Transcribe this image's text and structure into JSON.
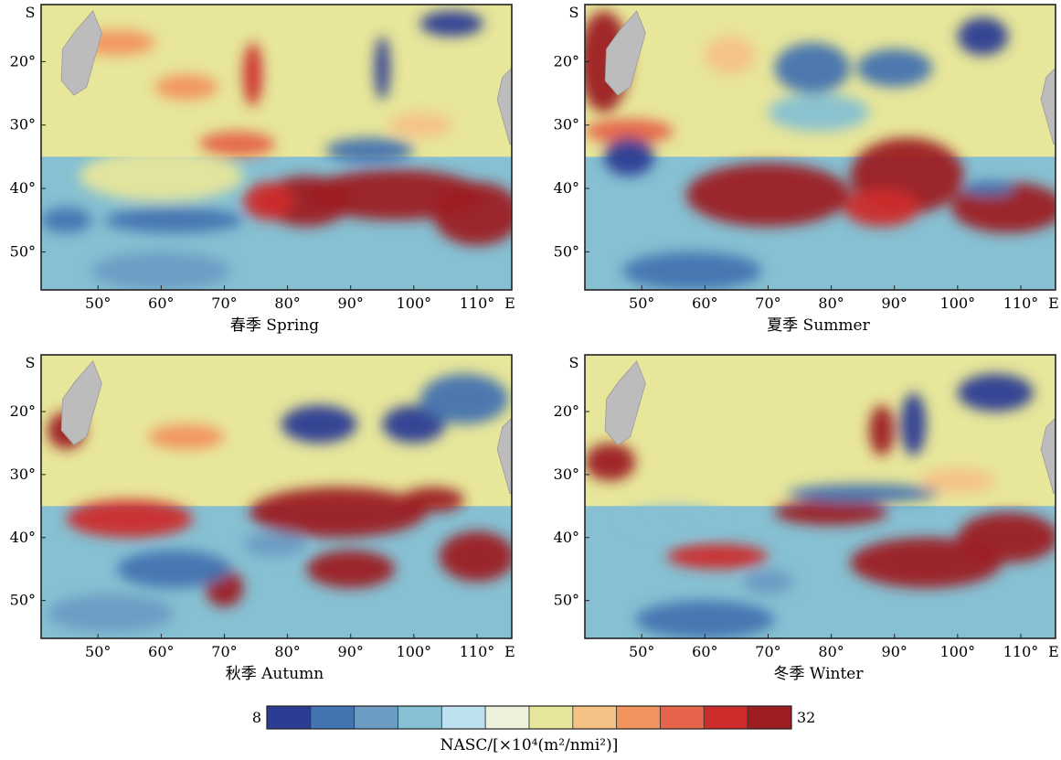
{
  "chart_data": {
    "type": "heatmap",
    "panels": [
      {
        "title": "春季 Spring",
        "blobs": [
          {
            "x": 97,
            "y": -41,
            "v": 32,
            "rx": 14,
            "ry": 4
          },
          {
            "x": 83,
            "y": -42,
            "v": 31,
            "rx": 7,
            "ry": 4
          },
          {
            "x": 110,
            "y": -44,
            "v": 31,
            "rx": 7,
            "ry": 5
          },
          {
            "x": 77,
            "y": -42,
            "v": 28,
            "rx": 4,
            "ry": 3
          },
          {
            "x": 74.5,
            "y": -22,
            "v": 29,
            "rx": 1.5,
            "ry": 5
          },
          {
            "x": 93,
            "y": -34,
            "v": 10,
            "rx": 7,
            "ry": 2
          },
          {
            "x": 95,
            "y": -21,
            "v": 9,
            "rx": 1.2,
            "ry": 5
          },
          {
            "x": 106,
            "y": -14,
            "v": 9,
            "rx": 5,
            "ry": 2
          },
          {
            "x": 62,
            "y": -45,
            "v": 10,
            "rx": 11,
            "ry": 2
          },
          {
            "x": 60,
            "y": -38,
            "v": 21,
            "rx": 13,
            "ry": 4
          },
          {
            "x": 53,
            "y": -17,
            "v": 24,
            "rx": 6,
            "ry": 2
          },
          {
            "x": 64,
            "y": -24,
            "v": 24,
            "rx": 5,
            "ry": 2
          },
          {
            "x": 60,
            "y": -53,
            "v": 12,
            "rx": 11,
            "ry": 3
          },
          {
            "x": 101,
            "y": -30,
            "v": 22,
            "rx": 5,
            "ry": 2
          },
          {
            "x": 72,
            "y": -33,
            "v": 26,
            "rx": 6,
            "ry": 2
          },
          {
            "x": 45,
            "y": -45,
            "v": 11,
            "rx": 4,
            "ry": 2
          }
        ]
      },
      {
        "title": "夏季 Summer",
        "blobs": [
          {
            "x": 44,
            "y": -20,
            "v": 32,
            "rx": 4,
            "ry": 8
          },
          {
            "x": 48,
            "y": -31,
            "v": 26,
            "rx": 7,
            "ry": 2
          },
          {
            "x": 70,
            "y": -41,
            "v": 31,
            "rx": 13,
            "ry": 5
          },
          {
            "x": 92,
            "y": -38,
            "v": 31,
            "rx": 9,
            "ry": 6
          },
          {
            "x": 108,
            "y": -43,
            "v": 32,
            "rx": 9,
            "ry": 4
          },
          {
            "x": 88,
            "y": -43,
            "v": 28,
            "rx": 6,
            "ry": 3
          },
          {
            "x": 105,
            "y": -40,
            "v": 10,
            "rx": 4,
            "ry": 1.2
          },
          {
            "x": 48,
            "y": -35,
            "v": 9,
            "rx": 4,
            "ry": 3
          },
          {
            "x": 77,
            "y": -21,
            "v": 11,
            "rx": 6,
            "ry": 4
          },
          {
            "x": 90,
            "y": -21,
            "v": 10,
            "rx": 6,
            "ry": 3
          },
          {
            "x": 104,
            "y": -16,
            "v": 9,
            "rx": 4,
            "ry": 3
          },
          {
            "x": 58,
            "y": -53,
            "v": 10,
            "rx": 11,
            "ry": 3
          },
          {
            "x": 78,
            "y": -28,
            "v": 14,
            "rx": 8,
            "ry": 3
          },
          {
            "x": 64,
            "y": -19,
            "v": 22,
            "rx": 4,
            "ry": 3
          }
        ]
      },
      {
        "title": "秋季 Autumn",
        "blobs": [
          {
            "x": 45,
            "y": -23,
            "v": 31,
            "rx": 3,
            "ry": 3
          },
          {
            "x": 55,
            "y": -37,
            "v": 29,
            "rx": 10,
            "ry": 3
          },
          {
            "x": 88,
            "y": -36,
            "v": 31,
            "rx": 14,
            "ry": 4
          },
          {
            "x": 103,
            "y": -34,
            "v": 30,
            "rx": 5,
            "ry": 2
          },
          {
            "x": 90,
            "y": -45,
            "v": 30,
            "rx": 7,
            "ry": 3
          },
          {
            "x": 110,
            "y": -43,
            "v": 31,
            "rx": 6,
            "ry": 4
          },
          {
            "x": 70,
            "y": -48,
            "v": 30,
            "rx": 3,
            "ry": 3
          },
          {
            "x": 85,
            "y": -22,
            "v": 9,
            "rx": 6,
            "ry": 3
          },
          {
            "x": 100,
            "y": -22,
            "v": 9,
            "rx": 5,
            "ry": 3
          },
          {
            "x": 108,
            "y": -18,
            "v": 10,
            "rx": 7,
            "ry": 4
          },
          {
            "x": 62,
            "y": -45,
            "v": 10,
            "rx": 9,
            "ry": 3
          },
          {
            "x": 52,
            "y": -52,
            "v": 13,
            "rx": 10,
            "ry": 3
          },
          {
            "x": 78,
            "y": -41,
            "v": 12,
            "rx": 5,
            "ry": 2
          },
          {
            "x": 64,
            "y": -24,
            "v": 24,
            "rx": 6,
            "ry": 2
          }
        ]
      },
      {
        "title": "冬季 Winter",
        "blobs": [
          {
            "x": 45,
            "y": -28,
            "v": 30,
            "rx": 4,
            "ry": 3
          },
          {
            "x": 80,
            "y": -36,
            "v": 30,
            "rx": 9,
            "ry": 2
          },
          {
            "x": 95,
            "y": -44,
            "v": 32,
            "rx": 12,
            "ry": 4
          },
          {
            "x": 108,
            "y": -40,
            "v": 31,
            "rx": 8,
            "ry": 4
          },
          {
            "x": 88,
            "y": -23,
            "v": 30,
            "rx": 2,
            "ry": 4
          },
          {
            "x": 62,
            "y": -43,
            "v": 29,
            "rx": 8,
            "ry": 2
          },
          {
            "x": 106,
            "y": -17,
            "v": 9,
            "rx": 6,
            "ry": 3
          },
          {
            "x": 93,
            "y": -22,
            "v": 9,
            "rx": 2,
            "ry": 5
          },
          {
            "x": 85,
            "y": -33,
            "v": 10,
            "rx": 12,
            "ry": 1.5
          },
          {
            "x": 60,
            "y": -53,
            "v": 11,
            "rx": 11,
            "ry": 3
          },
          {
            "x": 55,
            "y": -37,
            "v": 14,
            "rx": 8,
            "ry": 2
          },
          {
            "x": 100,
            "y": -31,
            "v": 22,
            "rx": 6,
            "ry": 2
          },
          {
            "x": 70,
            "y": -47,
            "v": 13,
            "rx": 4,
            "ry": 2
          }
        ]
      }
    ],
    "x_ticks": [
      {
        "value": 50,
        "label": "50°"
      },
      {
        "value": 60,
        "label": "60°"
      },
      {
        "value": 70,
        "label": "70°"
      },
      {
        "value": 80,
        "label": "80°"
      },
      {
        "value": 90,
        "label": "90°"
      },
      {
        "value": 100,
        "label": "100°"
      },
      {
        "value": 110,
        "label": "110°"
      }
    ],
    "x_end_label": "E",
    "y_ticks": [
      {
        "value": -20,
        "label": "20°"
      },
      {
        "value": -30,
        "label": "30°"
      },
      {
        "value": -40,
        "label": "40°"
      },
      {
        "value": -50,
        "label": "50°"
      }
    ],
    "y_top_label": "S",
    "xlim": [
      41,
      115.5
    ],
    "ylim": [
      -56,
      -11
    ],
    "colorbar": {
      "min": 8,
      "max": 32,
      "min_label": "8",
      "max_label": "32",
      "label": "NASC/[×10⁴(m²/nmi²)]",
      "colors": [
        "#2c3c94",
        "#4373b0",
        "#6c9bc3",
        "#86c0d2",
        "#bde1ef",
        "#ecf2dc",
        "#e7e69a",
        "#f5c286",
        "#f2935e",
        "#e5644a",
        "#cc2d2b",
        "#9c1d22"
      ]
    },
    "background_colors": {
      "north": "#e7e69a",
      "south": "#86c0d2"
    },
    "land_color": "#bcbcbc"
  }
}
